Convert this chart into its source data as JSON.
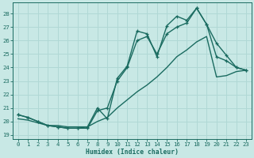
{
  "xlabel": "Humidex (Indice chaleur)",
  "bg_color": "#c8e8e5",
  "grid_color": "#b0d8d5",
  "line_color": "#1a6b60",
  "xlim": [
    -0.5,
    23.5
  ],
  "ylim": [
    18.7,
    28.8
  ],
  "xticks": [
    0,
    1,
    2,
    3,
    4,
    5,
    6,
    7,
    8,
    9,
    10,
    11,
    12,
    13,
    14,
    15,
    16,
    17,
    18,
    19,
    20,
    21,
    22,
    23
  ],
  "yticks": [
    19,
    20,
    21,
    22,
    23,
    24,
    25,
    26,
    27,
    28
  ],
  "line_top_x": [
    0,
    1,
    2,
    3,
    4,
    5,
    6,
    7,
    8,
    9,
    10,
    11,
    12,
    13,
    14,
    15,
    16,
    17,
    18,
    19,
    20,
    21,
    22,
    23
  ],
  "line_top_y": [
    20.5,
    20.3,
    20.0,
    19.7,
    19.6,
    19.5,
    19.5,
    19.6,
    21.0,
    20.2,
    23.2,
    24.1,
    26.7,
    26.5,
    24.8,
    27.1,
    27.8,
    27.5,
    28.4,
    27.2,
    25.8,
    24.9,
    24.0,
    23.8
  ],
  "line_mid_x": [
    0,
    1,
    2,
    3,
    4,
    5,
    6,
    7,
    8,
    9,
    10,
    11,
    12,
    13,
    14,
    15,
    16,
    17,
    18,
    19,
    20,
    21,
    22,
    23
  ],
  "line_mid_y": [
    20.5,
    20.3,
    20.0,
    19.7,
    19.6,
    19.5,
    19.5,
    19.5,
    20.8,
    21.0,
    23.0,
    24.0,
    26.0,
    26.3,
    25.0,
    26.5,
    27.0,
    27.3,
    28.4,
    27.2,
    24.8,
    24.5,
    24.0,
    23.8
  ],
  "line_bot_x": [
    0,
    1,
    2,
    3,
    4,
    5,
    6,
    7,
    8,
    9,
    10,
    11,
    12,
    13,
    14,
    15,
    16,
    17,
    18,
    19,
    20,
    21,
    22,
    23
  ],
  "line_bot_y": [
    20.2,
    20.1,
    19.9,
    19.7,
    19.7,
    19.6,
    19.6,
    19.6,
    20.0,
    20.3,
    21.0,
    21.6,
    22.2,
    22.7,
    23.3,
    24.0,
    24.8,
    25.3,
    25.9,
    26.3,
    23.3,
    23.4,
    23.7,
    23.8
  ]
}
